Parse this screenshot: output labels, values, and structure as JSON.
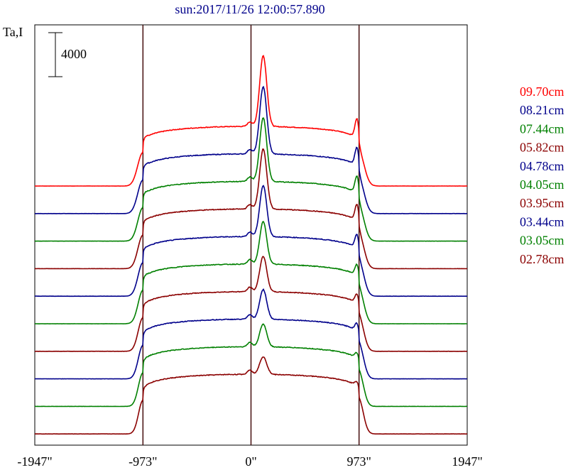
{
  "chart_data": {
    "type": "line",
    "title": "sun:2017/11/26 12:00:57.890",
    "ylabel": "Ta,I",
    "scale_bar_label": "4000",
    "scale_bar_value": 4000,
    "xlim": [
      -1947,
      1947
    ],
    "x_tick_values": [
      -1947,
      -973,
      0,
      973,
      1947
    ],
    "x_tick_labels": [
      "-1947\"",
      "-973\"",
      "0\"",
      "973\"",
      "1947\""
    ],
    "vertical_markers": [
      -973,
      0,
      973
    ],
    "grid": false,
    "legend_position": "right",
    "series": [
      {
        "name": "09.70cm",
        "color": "#ff0000",
        "peak": 1.0,
        "limb": 0.55
      },
      {
        "name": "08.21cm",
        "color": "#00008b",
        "peak": 0.95,
        "limb": 0.58
      },
      {
        "name": "07.44cm",
        "color": "#008000",
        "peak": 0.9,
        "limb": 0.62
      },
      {
        "name": "05.82cm",
        "color": "#8b0000",
        "peak": 0.85,
        "limb": 0.66
      },
      {
        "name": "04.78cm",
        "color": "#00008b",
        "peak": 0.72,
        "limb": 0.7
      },
      {
        "name": "04.05cm",
        "color": "#008000",
        "peak": 0.6,
        "limb": 0.74
      },
      {
        "name": "03.95cm",
        "color": "#8b0000",
        "peak": 0.5,
        "limb": 0.78
      },
      {
        "name": "03.44cm",
        "color": "#00008b",
        "peak": 0.42,
        "limb": 0.82
      },
      {
        "name": "03.05cm",
        "color": "#008000",
        "peak": 0.32,
        "limb": 0.86
      },
      {
        "name": "02.78cm",
        "color": "#8b0000",
        "peak": 0.25,
        "limb": 0.9
      }
    ]
  }
}
